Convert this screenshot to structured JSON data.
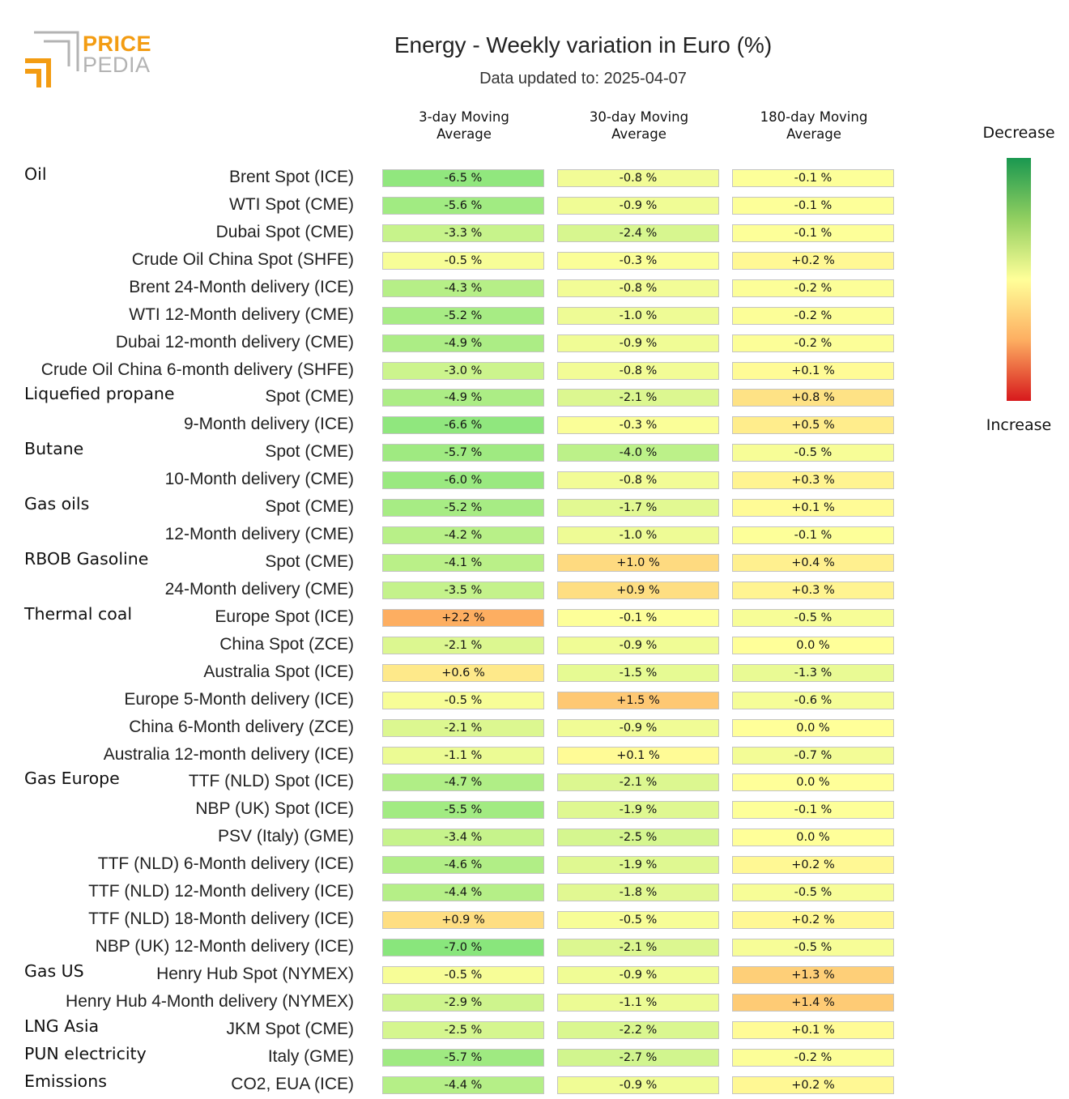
{
  "logo": {
    "line1": "PRICE",
    "line2": "PEDIA"
  },
  "colors": {
    "accent": "#f39c12",
    "logo_gray": "#b3b3b3"
  },
  "chart_data": {
    "type": "table",
    "title": "Energy - Weekly variation in Euro (%)",
    "subtitle": "Data updated to: 2025-04-07",
    "columns": [
      "3-day Moving\nAverage",
      "30-day Moving\nAverage",
      "180-day Moving\nAverage"
    ],
    "legend": {
      "top": "Decrease",
      "bottom": "Increase"
    },
    "unit_suffix": " %",
    "rows": [
      {
        "group": "Oil",
        "label": "Brent Spot (ICE)",
        "values": [
          "-6.5",
          "-0.8",
          "-0.1"
        ]
      },
      {
        "group": "",
        "label": "WTI Spot (CME)",
        "values": [
          "-5.6",
          "-0.9",
          "-0.1"
        ]
      },
      {
        "group": "",
        "label": "Dubai Spot (CME)",
        "values": [
          "-3.3",
          "-2.4",
          "-0.1"
        ]
      },
      {
        "group": "",
        "label": "Crude Oil China Spot (SHFE)",
        "values": [
          "-0.5",
          "-0.3",
          "+0.2"
        ]
      },
      {
        "group": "",
        "label": "Brent 24-Month delivery (ICE)",
        "values": [
          "-4.3",
          "-0.8",
          "-0.2"
        ]
      },
      {
        "group": "",
        "label": "WTI 12-Month delivery (CME)",
        "values": [
          "-5.2",
          "-1.0",
          "-0.2"
        ]
      },
      {
        "group": "",
        "label": "Dubai 12-month delivery (CME)",
        "values": [
          "-4.9",
          "-0.9",
          "-0.2"
        ]
      },
      {
        "group": "",
        "label": "Crude Oil China 6-month delivery (SHFE)",
        "values": [
          "-3.0",
          "-0.8",
          "+0.1"
        ]
      },
      {
        "group": "Liquefied propane",
        "label": "Spot (CME)",
        "values": [
          "-4.9",
          "-2.1",
          "+0.8"
        ]
      },
      {
        "group": "",
        "label": "9-Month delivery (ICE)",
        "values": [
          "-6.6",
          "-0.3",
          "+0.5"
        ]
      },
      {
        "group": "Butane",
        "label": "Spot (CME)",
        "values": [
          "-5.7",
          "-4.0",
          "-0.5"
        ]
      },
      {
        "group": "",
        "label": "10-Month delivery (CME)",
        "values": [
          "-6.0",
          "-0.8",
          "+0.3"
        ]
      },
      {
        "group": "Gas oils",
        "label": "Spot (CME)",
        "values": [
          "-5.2",
          "-1.7",
          "+0.1"
        ]
      },
      {
        "group": "",
        "label": "12-Month delivery (CME)",
        "values": [
          "-4.2",
          "-1.0",
          "-0.1"
        ]
      },
      {
        "group": "RBOB Gasoline",
        "label": "Spot (CME)",
        "values": [
          "-4.1",
          "+1.0",
          "+0.4"
        ]
      },
      {
        "group": "",
        "label": "24-Month delivery (CME)",
        "values": [
          "-3.5",
          "+0.9",
          "+0.3"
        ]
      },
      {
        "group": "Thermal coal",
        "label": "Europe Spot (ICE)",
        "values": [
          "+2.2",
          "-0.1",
          "-0.5"
        ]
      },
      {
        "group": "",
        "label": "China Spot (ZCE)",
        "values": [
          "-2.1",
          "-0.9",
          "0.0"
        ]
      },
      {
        "group": "",
        "label": "Australia Spot (ICE)",
        "values": [
          "+0.6",
          "-1.5",
          "-1.3"
        ]
      },
      {
        "group": "",
        "label": "Europe 5-Month delivery (ICE)",
        "values": [
          "-0.5",
          "+1.5",
          "-0.6"
        ]
      },
      {
        "group": "",
        "label": "China 6-Month delivery (ZCE)",
        "values": [
          "-2.1",
          "-0.9",
          "0.0"
        ]
      },
      {
        "group": "",
        "label": "Australia 12-month delivery (ICE)",
        "values": [
          "-1.1",
          "+0.1",
          "-0.7"
        ]
      },
      {
        "group": "Gas Europe",
        "label": "TTF (NLD) Spot (ICE)",
        "values": [
          "-4.7",
          "-2.1",
          "0.0"
        ]
      },
      {
        "group": "",
        "label": "NBP (UK) Spot (ICE)",
        "values": [
          "-5.5",
          "-1.9",
          "-0.1"
        ]
      },
      {
        "group": "",
        "label": "PSV (Italy) (GME)",
        "values": [
          "-3.4",
          "-2.5",
          "0.0"
        ]
      },
      {
        "group": "",
        "label": "TTF (NLD) 6-Month delivery (ICE)",
        "values": [
          "-4.6",
          "-1.9",
          "+0.2"
        ]
      },
      {
        "group": "",
        "label": "TTF (NLD) 12-Month delivery (ICE)",
        "values": [
          "-4.4",
          "-1.8",
          "-0.5"
        ]
      },
      {
        "group": "",
        "label": "TTF (NLD) 18-Month delivery (ICE)",
        "values": [
          "+0.9",
          "-0.5",
          "+0.2"
        ]
      },
      {
        "group": "",
        "label": "NBP (UK) 12-Month delivery (ICE)",
        "values": [
          "-7.0",
          "-2.1",
          "-0.5"
        ]
      },
      {
        "group": "Gas US",
        "label": "Henry Hub Spot (NYMEX)",
        "values": [
          "-0.5",
          "-0.9",
          "+1.3"
        ]
      },
      {
        "group": "",
        "label": "Henry Hub 4-Month delivery (NYMEX)",
        "values": [
          "-2.9",
          "-1.1",
          "+1.4"
        ]
      },
      {
        "group": "LNG Asia",
        "label": "JKM Spot (CME)",
        "values": [
          "-2.5",
          "-2.2",
          "+0.1"
        ]
      },
      {
        "group": "PUN electricity",
        "label": "Italy (GME)",
        "values": [
          "-5.7",
          "-2.7",
          "-0.2"
        ]
      },
      {
        "group": "Emissions",
        "label": "CO2, EUA (ICE)",
        "values": [
          "-4.4",
          "-0.9",
          "+0.2"
        ]
      }
    ]
  }
}
